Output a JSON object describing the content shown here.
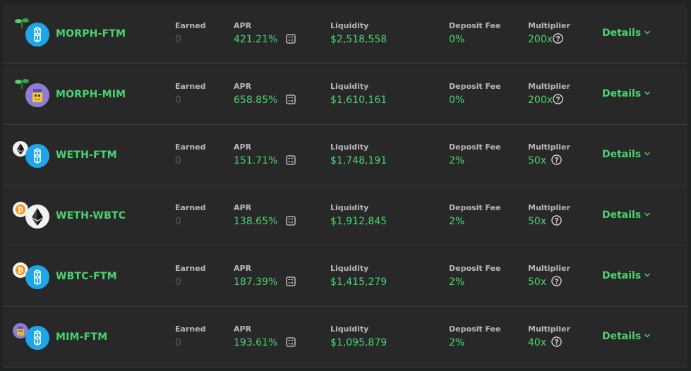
{
  "colors": {
    "accent": "#4ad36f",
    "row_bg": "#282828",
    "label": "#b8b8b8",
    "zero": "#5a5a5a",
    "fantom": "#1fa6e8"
  },
  "labels": {
    "earned": "Earned",
    "apr": "APR",
    "liquidity": "Liquidity",
    "deposit_fee": "Deposit Fee",
    "multiplier": "Multiplier",
    "details": "Details"
  },
  "farms": [
    {
      "pair": "MORPH-FTM",
      "tokens": [
        "morph-sprout-icon",
        "fantom-icon"
      ],
      "earned": "0",
      "apr": "421.21%",
      "liquidity": "$2,518,558",
      "deposit_fee": "0%",
      "multiplier": "200x"
    },
    {
      "pair": "MORPH-MIM",
      "tokens": [
        "morph-sprout-icon",
        "mim-icon"
      ],
      "earned": "0",
      "apr": "658.85%",
      "liquidity": "$1,610,161",
      "deposit_fee": "0%",
      "multiplier": "200x"
    },
    {
      "pair": "WETH-FTM",
      "tokens": [
        "ethereum-icon",
        "fantom-icon"
      ],
      "earned": "0",
      "apr": "151.71%",
      "liquidity": "$1,748,191",
      "deposit_fee": "2%",
      "multiplier": "50x"
    },
    {
      "pair": "WETH-WBTC",
      "tokens": [
        "bitcoin-icon",
        "ethereum-icon"
      ],
      "earned": "0",
      "apr": "138.65%",
      "liquidity": "$1,912,845",
      "deposit_fee": "2%",
      "multiplier": "50x"
    },
    {
      "pair": "WBTC-FTM",
      "tokens": [
        "bitcoin-icon",
        "fantom-icon"
      ],
      "earned": "0",
      "apr": "187.39%",
      "liquidity": "$1,415,279",
      "deposit_fee": "2%",
      "multiplier": "50x"
    },
    {
      "pair": "MIM-FTM",
      "tokens": [
        "mim-icon",
        "fantom-icon"
      ],
      "earned": "0",
      "apr": "193.61%",
      "liquidity": "$1,095,879",
      "deposit_fee": "2%",
      "multiplier": "40x"
    }
  ]
}
